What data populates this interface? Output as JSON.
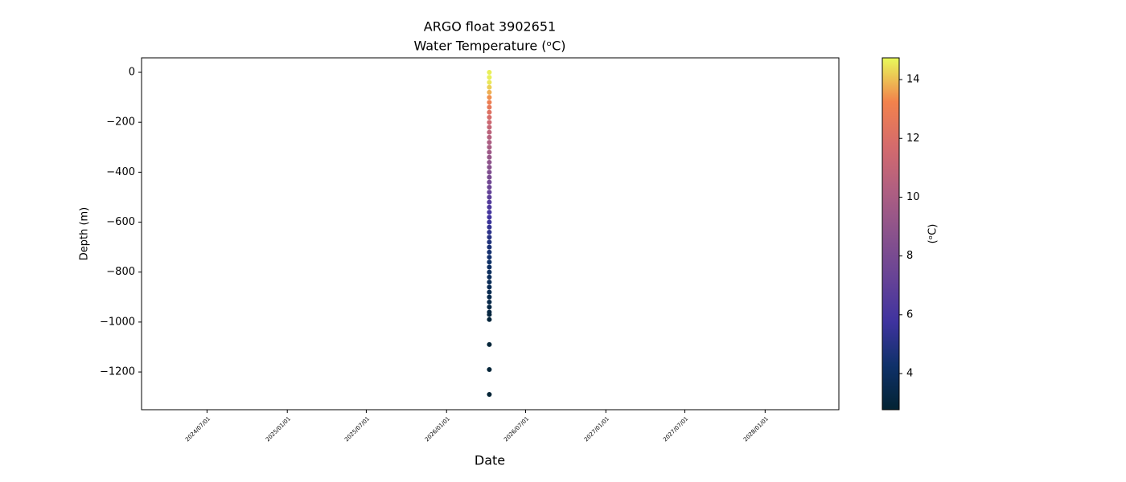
{
  "chart_data": {
    "type": "scatter",
    "title": "ARGO float 3902651",
    "subtitle": "Water Temperature (ᵒC)",
    "x_label": "Date",
    "y_label": "Depth (m)",
    "colorbar_label": "(ᵒC)",
    "x": [
      "2026/04/09",
      "2026/04/09",
      "2026/04/09",
      "2026/04/09",
      "2026/04/09",
      "2026/04/09",
      "2026/04/09",
      "2026/04/09",
      "2026/04/09",
      "2026/04/09",
      "2026/04/09",
      "2026/04/09",
      "2026/04/09",
      "2026/04/09",
      "2026/04/09",
      "2026/04/09",
      "2026/04/09",
      "2026/04/09",
      "2026/04/09",
      "2026/04/09",
      "2026/04/09",
      "2026/04/09",
      "2026/04/09",
      "2026/04/09",
      "2026/04/09",
      "2026/04/09",
      "2026/04/09",
      "2026/04/09",
      "2026/04/09",
      "2026/04/09",
      "2026/04/09",
      "2026/04/09",
      "2026/04/09",
      "2026/04/09",
      "2026/04/09",
      "2026/04/09",
      "2026/04/09",
      "2026/04/09",
      "2026/04/09",
      "2026/04/09",
      "2026/04/09",
      "2026/04/09",
      "2026/04/09",
      "2026/04/09",
      "2026/04/09",
      "2026/04/09",
      "2026/04/09",
      "2026/04/09",
      "2026/04/09",
      "2026/04/09",
      "2026/04/09",
      "2026/04/09",
      "2026/04/09",
      "2026/04/09"
    ],
    "values": [
      0,
      -20,
      -40,
      -60,
      -80,
      -100,
      -120,
      -140,
      -160,
      -180,
      -200,
      -220,
      -240,
      -260,
      -280,
      -300,
      -320,
      -340,
      -360,
      -380,
      -400,
      -420,
      -440,
      -460,
      -480,
      -500,
      -520,
      -540,
      -560,
      -580,
      -600,
      -620,
      -640,
      -660,
      -680,
      -700,
      -720,
      -740,
      -760,
      -780,
      -800,
      -820,
      -840,
      -860,
      -880,
      -900,
      -920,
      -940,
      -960,
      -970,
      -990,
      -1090,
      -1190,
      -1290
    ],
    "temperature": [
      14.6,
      14.6,
      14.5,
      14.2,
      13.8,
      13.4,
      13.0,
      12.6,
      12.2,
      11.8,
      11.4,
      11.0,
      10.7,
      10.4,
      10.1,
      9.8,
      9.5,
      9.2,
      8.9,
      8.6,
      8.3,
      8.0,
      7.7,
      7.4,
      7.1,
      6.8,
      6.5,
      6.2,
      6.0,
      5.8,
      5.6,
      5.4,
      5.2,
      5.0,
      4.8,
      4.6,
      4.5,
      4.4,
      4.2,
      4.1,
      4.0,
      3.9,
      3.8,
      3.7,
      3.6,
      3.5,
      3.4,
      3.3,
      3.2,
      3.1,
      3.0,
      2.95,
      2.9,
      2.85
    ],
    "xlim": [
      "2024/02/02",
      "2028/06/18"
    ],
    "xticks": [
      "2024/07/01",
      "2025/01/01",
      "2025/07/01",
      "2026/01/01",
      "2026/07/01",
      "2027/01/01",
      "2027/07/01",
      "2028/01/01"
    ],
    "ylim": [
      -1351,
      58
    ],
    "yticks": [
      {
        "value": 0,
        "label": "0"
      },
      {
        "value": -200,
        "label": "−200"
      },
      {
        "value": -400,
        "label": "−400"
      },
      {
        "value": -600,
        "label": "−600"
      },
      {
        "value": -800,
        "label": "−800"
      },
      {
        "value": -1000,
        "label": "−1000"
      },
      {
        "value": -1200,
        "label": "−1200"
      }
    ],
    "clim": [
      2.77,
      14.74
    ],
    "cticks": [
      4,
      6,
      8,
      10,
      12,
      14
    ],
    "colormap": [
      "#032333",
      "#0f3169",
      "#3f339f",
      "#674396",
      "#8a528c",
      "#b05f81",
      "#d56b6c",
      "#f2824c",
      "#e8fa5b"
    ]
  }
}
